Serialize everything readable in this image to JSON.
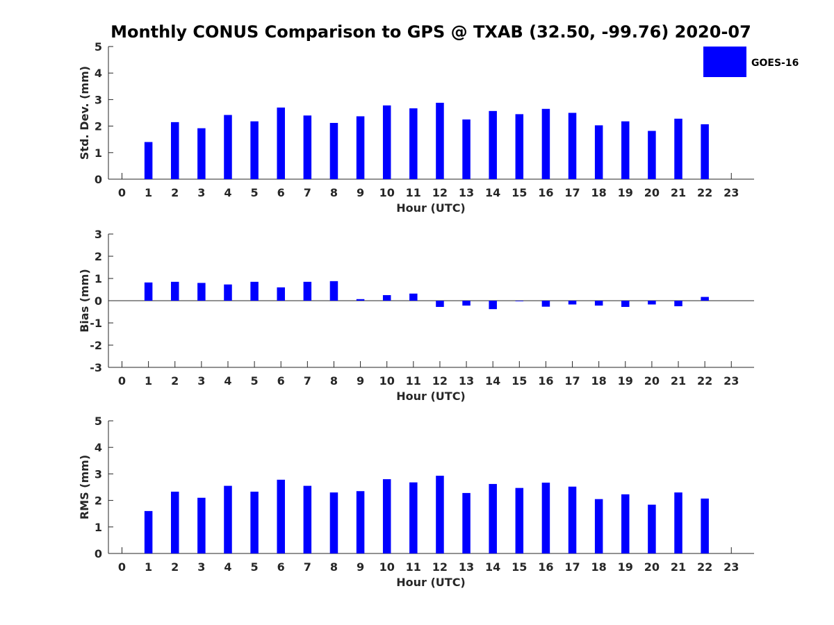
{
  "chart_data": {
    "title": "Monthly CONUS Comparison to GPS @ TXAB (32.50, -99.76) 2020-07",
    "legend": {
      "label": "GOES-16",
      "color": "#0000ff",
      "placement": "top-right"
    },
    "bar_color": "#0000ff",
    "panels": [
      {
        "type": "bar",
        "ylabel": "Std. Dev. (mm)",
        "xlabel": "Hour (UTC)",
        "ylim": [
          0,
          5
        ],
        "yticks": [
          "0",
          "1",
          "2",
          "3",
          "4",
          "5"
        ],
        "categories": [
          "0",
          "1",
          "2",
          "3",
          "4",
          "5",
          "6",
          "7",
          "8",
          "9",
          "10",
          "11",
          "12",
          "13",
          "14",
          "15",
          "16",
          "17",
          "18",
          "19",
          "20",
          "21",
          "22",
          "23"
        ],
        "values": [
          null,
          1.4,
          2.15,
          1.92,
          2.42,
          2.18,
          2.7,
          2.4,
          2.12,
          2.37,
          2.78,
          2.67,
          2.88,
          2.25,
          2.57,
          2.45,
          2.65,
          2.5,
          2.03,
          2.18,
          1.82,
          2.28,
          2.07,
          null
        ],
        "legend": true
      },
      {
        "type": "bar",
        "ylabel": "Bias (mm)",
        "xlabel": "Hour (UTC)",
        "ylim": [
          -3,
          3
        ],
        "yticks": [
          "-3",
          "-2",
          "-1",
          "0",
          "1",
          "2",
          "3"
        ],
        "zero_line": true,
        "categories": [
          "0",
          "1",
          "2",
          "3",
          "4",
          "5",
          "6",
          "7",
          "8",
          "9",
          "10",
          "11",
          "12",
          "13",
          "14",
          "15",
          "16",
          "17",
          "18",
          "19",
          "20",
          "21",
          "22",
          "23"
        ],
        "values": [
          null,
          0.82,
          0.85,
          0.8,
          0.73,
          0.85,
          0.6,
          0.85,
          0.88,
          0.07,
          0.25,
          0.32,
          -0.28,
          -0.22,
          -0.38,
          -0.02,
          -0.27,
          -0.17,
          -0.22,
          -0.28,
          -0.17,
          -0.25,
          0.17,
          null
        ],
        "legend": false
      },
      {
        "type": "bar",
        "ylabel": "RMS (mm)",
        "xlabel": "Hour (UTC)",
        "ylim": [
          0,
          5
        ],
        "yticks": [
          "0",
          "1",
          "2",
          "3",
          "4",
          "5"
        ],
        "categories": [
          "0",
          "1",
          "2",
          "3",
          "4",
          "5",
          "6",
          "7",
          "8",
          "9",
          "10",
          "11",
          "12",
          "13",
          "14",
          "15",
          "16",
          "17",
          "18",
          "19",
          "20",
          "21",
          "22",
          "23"
        ],
        "values": [
          null,
          1.6,
          2.33,
          2.1,
          2.55,
          2.33,
          2.78,
          2.55,
          2.3,
          2.35,
          2.8,
          2.68,
          2.93,
          2.28,
          2.62,
          2.47,
          2.67,
          2.52,
          2.05,
          2.23,
          1.84,
          2.3,
          2.07,
          null
        ],
        "legend": false
      }
    ]
  }
}
